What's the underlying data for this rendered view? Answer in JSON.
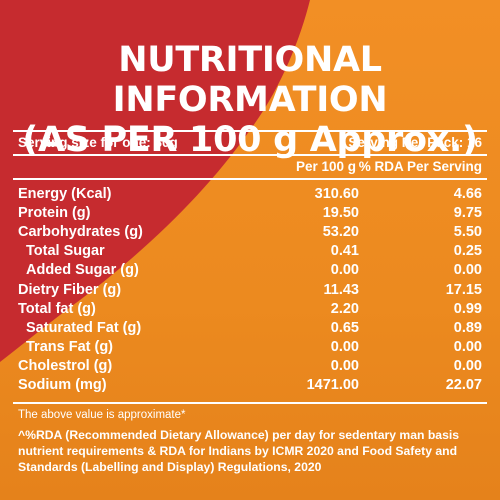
{
  "colors": {
    "orange": "#ec8a1f",
    "red": "#c62b2f",
    "text": "#ffffff"
  },
  "title": {
    "line1": "NUTRITIONAL INFORMATION",
    "line2": "(AS PER 100 g Approx.)"
  },
  "serving": {
    "size": "Serving size for one: 30g",
    "per_pack": "Serving Per Pack: 16"
  },
  "columns": {
    "per100": "Per 100 g",
    "rda": "% RDA Per Serving"
  },
  "rows": [
    {
      "label": "Energy (Kcal)",
      "per100": "310.60",
      "rda": "4.66",
      "indent": false
    },
    {
      "label": "Protein (g)",
      "per100": "19.50",
      "rda": "9.75",
      "indent": false
    },
    {
      "label": "Carbohydrates (g)",
      "per100": "53.20",
      "rda": "5.50",
      "indent": false
    },
    {
      "label": "Total Sugar",
      "per100": "0.41",
      "rda": "0.25",
      "indent": true
    },
    {
      "label": "Added Sugar (g)",
      "per100": "0.00",
      "rda": "0.00",
      "indent": true
    },
    {
      "label": "Dietry Fiber (g)",
      "per100": "11.43",
      "rda": "17.15",
      "indent": false
    },
    {
      "label": "Total fat (g)",
      "per100": "2.20",
      "rda": "0.99",
      "indent": false
    },
    {
      "label": "Saturated Fat (g)",
      "per100": "0.65",
      "rda": "0.89",
      "indent": true
    },
    {
      "label": "Trans Fat (g)",
      "per100": "0.00",
      "rda": "0.00",
      "indent": true
    },
    {
      "label": "Cholestrol (g)",
      "per100": "0.00",
      "rda": "0.00",
      "indent": false
    },
    {
      "label": "Sodium (mg)",
      "per100": "1471.00",
      "rda": "22.07",
      "indent": false
    }
  ],
  "note": "The above value is approximate*",
  "footnote": "^%RDA (Recommended Dietary Allowance) per day for sedentary man basis nutrient requirements & RDA for Indians by ICMR 2020 and Food Safety and Standards (Labelling and Display) Regulations, 2020"
}
